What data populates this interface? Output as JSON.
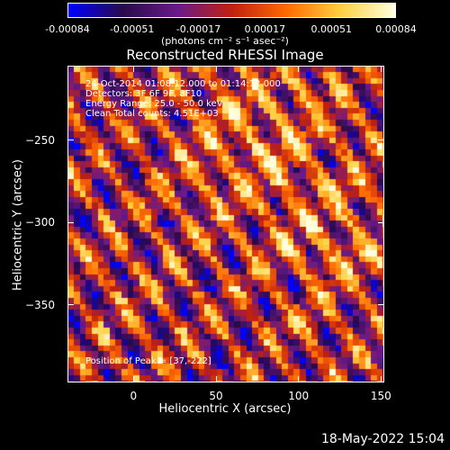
{
  "chart_data": {
    "type": "heatmap",
    "title": "Reconstructed RHESSI Image",
    "xlabel": "Heliocentric X (arcsec)",
    "ylabel": "Heliocentric Y (arcsec)",
    "xlim": [
      -40,
      152
    ],
    "ylim": [
      -397,
      -205
    ],
    "xticks": [
      "0",
      "50",
      "100",
      "150"
    ],
    "xtick_values": [
      0,
      50,
      100,
      150
    ],
    "yticks": [
      "-250",
      "-300",
      "-350"
    ],
    "ytick_values": [
      -250,
      -300,
      -350
    ],
    "colorbar": {
      "ticks": [
        "-0.00084",
        "-0.00051",
        "-0.00017",
        "0.00017",
        "0.00051",
        "0.00084"
      ],
      "tick_values": [
        -0.00084,
        -0.00051,
        -0.00017,
        0.00017,
        0.00051,
        0.00084
      ],
      "units": "(photons cm⁻² s⁻¹ asec⁻²)",
      "colors": [
        "#0000ff",
        "#2a0a4a",
        "#6a1a8a",
        "#c02010",
        "#ff6a00",
        "#ffd040",
        "#ffffe0"
      ]
    },
    "annotations": {
      "time": "24-Oct-2014 01:08:12.000 to 01:14:12.000",
      "detectors": "Detectors: 3F 6F 9F, 8F10",
      "energy": "Energy Range: 25.0 - 50.0 keV",
      "clean": "Clean     Total counts: 4.51E+03",
      "peak": "Position of Peak = [37,-222]"
    },
    "peak": {
      "x": 37,
      "y": -222
    }
  },
  "footer": {
    "date": "18-May-2022 15:04"
  }
}
